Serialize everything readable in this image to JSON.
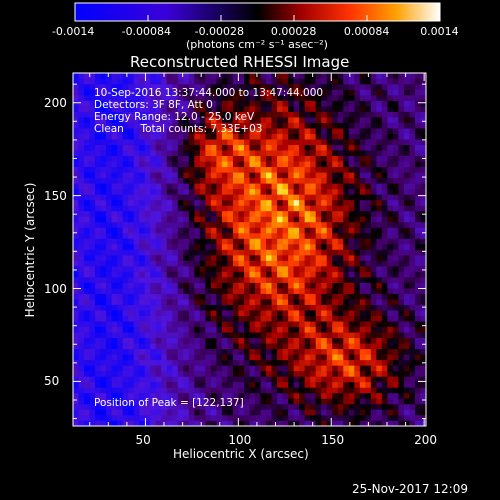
{
  "chart_data": {
    "type": "heatmap",
    "title": "Reconstructed RHESSI Image",
    "xlabel": "Heliocentric X (arcsec)",
    "ylabel": "Heliocentric Y (arcsec)",
    "xlim": [
      11,
      201
    ],
    "ylim": [
      26,
      216
    ],
    "xticks": [
      "50",
      "100",
      "150",
      "200"
    ],
    "yticks": [
      "50",
      "100",
      "150",
      "200"
    ],
    "colorbar": {
      "min": -0.0014,
      "max": 0.0014,
      "ticks": [
        "-0.0014",
        "-0.00084",
        "-0.00028",
        "0.00028",
        "0.00084",
        "0.0014"
      ],
      "label": "(photons cm⁻² s⁻¹ asec⁻²)"
    },
    "peak": [
      122,
      137
    ],
    "annotations": {
      "time_range": "10-Sep-2016 13:37:44.000 to 13:47:44.000",
      "detectors": "Detectors: 3F 8F, Att 0",
      "energy": "Energy Range: 12.0 - 25.0 keV",
      "clean": "Clean     Total counts: 7.33E+03",
      "peak_text": "Position of Peak = [122,137]"
    },
    "grid": false
  },
  "footer": {
    "date": "25-Nov-2017 12:09"
  }
}
